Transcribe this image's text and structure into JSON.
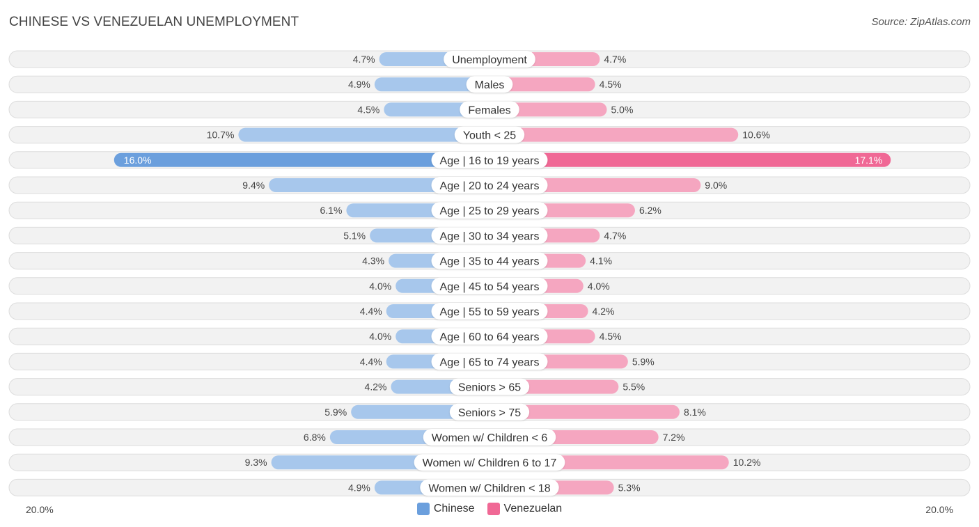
{
  "title": "CHINESE VS VENEZUELAN UNEMPLOYMENT",
  "source": "Source: ZipAtlas.com",
  "colors": {
    "chinese_light": "#a7c7ec",
    "chinese_strong": "#6b9fdd",
    "venezuelan_light": "#f5a6c0",
    "venezuelan_strong": "#f06895"
  },
  "legend": {
    "chinese": "Chinese",
    "venezuelan": "Venezuelan"
  },
  "axis": {
    "left_label": "20.0%",
    "right_label": "20.0%"
  },
  "chart_data": {
    "type": "bar",
    "orientation": "diverging-horizontal",
    "title": "CHINESE VS VENEZUELAN UNEMPLOYMENT",
    "xlim": [
      -20,
      20
    ],
    "categories": [
      "Unemployment",
      "Males",
      "Females",
      "Youth < 25",
      "Age | 16 to 19 years",
      "Age | 20 to 24 years",
      "Age | 25 to 29 years",
      "Age | 30 to 34 years",
      "Age | 35 to 44 years",
      "Age | 45 to 54 years",
      "Age | 55 to 59 years",
      "Age | 60 to 64 years",
      "Age | 65 to 74 years",
      "Seniors > 65",
      "Seniors > 75",
      "Women w/ Children < 6",
      "Women w/ Children 6 to 17",
      "Women w/ Children < 18"
    ],
    "series": [
      {
        "name": "Chinese",
        "values": [
          4.7,
          4.9,
          4.5,
          10.7,
          16.0,
          9.4,
          6.1,
          5.1,
          4.3,
          4.0,
          4.4,
          4.0,
          4.4,
          4.2,
          5.9,
          6.8,
          9.3,
          4.9
        ],
        "labels": [
          "4.7%",
          "4.9%",
          "4.5%",
          "10.7%",
          "16.0%",
          "9.4%",
          "6.1%",
          "5.1%",
          "4.3%",
          "4.0%",
          "4.4%",
          "4.0%",
          "4.4%",
          "4.2%",
          "5.9%",
          "6.8%",
          "9.3%",
          "4.9%"
        ]
      },
      {
        "name": "Venezuelan",
        "values": [
          4.7,
          4.5,
          5.0,
          10.6,
          17.1,
          9.0,
          6.2,
          4.7,
          4.1,
          4.0,
          4.2,
          4.5,
          5.9,
          5.5,
          8.1,
          7.2,
          10.2,
          5.3
        ],
        "labels": [
          "4.7%",
          "4.5%",
          "5.0%",
          "10.6%",
          "17.1%",
          "9.0%",
          "6.2%",
          "4.7%",
          "4.1%",
          "4.0%",
          "4.2%",
          "4.5%",
          "5.9%",
          "5.5%",
          "8.1%",
          "7.2%",
          "10.2%",
          "5.3%"
        ]
      }
    ]
  }
}
